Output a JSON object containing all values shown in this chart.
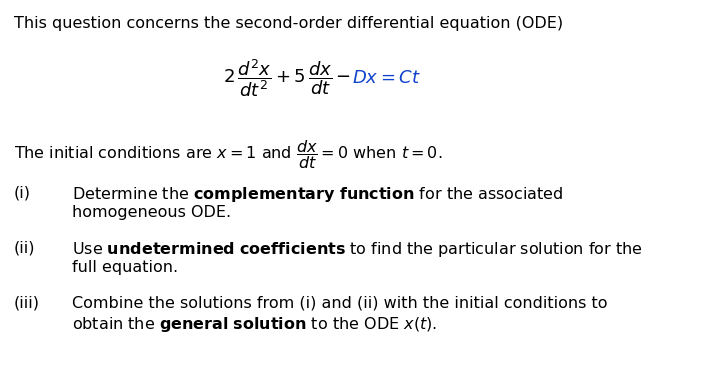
{
  "background_color": "#ffffff",
  "figsize": [
    7.03,
    3.92
  ],
  "dpi": 100,
  "eq_color": "#1144cc",
  "black": "#000000",
  "fs_body": 11.5,
  "fs_eq": 13,
  "title": "This question concerns the second-order differential equation (ODE)",
  "ic_line": "The initial conditions are $x = 1$ and $\\frac{dx}{dt} = 0$ when $t = 0$.",
  "item_i_label": "(i)",
  "item_i_line1_pre": "Determine the ",
  "item_i_line1_bold": "complementary function",
  "item_i_line1_post": " for the associated",
  "item_i_line2": "homogeneous ODE.",
  "item_ii_label": "(ii)",
  "item_ii_line1_pre": "Use ",
  "item_ii_line1_bold": "undetermined coefficients",
  "item_ii_line1_post": " to find the particular solution for the",
  "item_ii_line2": "full equation.",
  "item_iii_label": "(iii)",
  "item_iii_line1": "Combine the solutions from (i) and (ii) with the initial conditions to",
  "item_iii_line2_pre": "obtain the ",
  "item_iii_line2_bold": "general solution",
  "item_iii_line2_post": " to the ODE $x(t)$.",
  "eq_black_part": "$2\\,\\dfrac{d^2x}{dt^2} + 5\\,\\dfrac{dx}{dt} - $",
  "eq_blue_part": "$Dx = Ct$"
}
